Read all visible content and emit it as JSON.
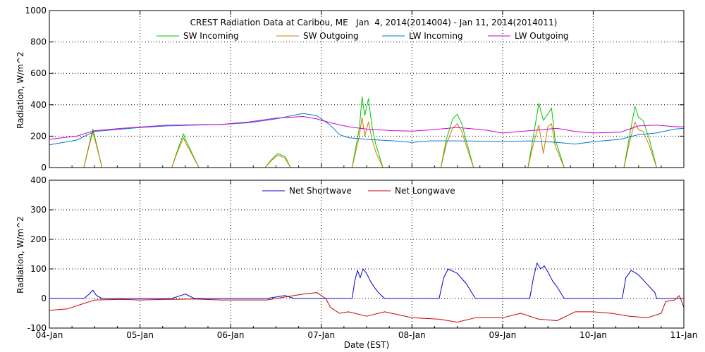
{
  "chart_data": [
    {
      "type": "line",
      "title": "CREST Radiation Data at Caribou, ME   Jan  4, 2014(2014004) - Jan 11, 2014(2014011)",
      "xlabel": "",
      "ylabel": "Radiation, W/m^2",
      "ylim": [
        0,
        1000
      ],
      "yticks": [
        "0",
        "200",
        "400",
        "600",
        "800",
        "1000"
      ],
      "xlim": [
        0,
        7
      ],
      "grid": true,
      "legend_position": "top",
      "series": [
        {
          "name": "SW Incoming",
          "color": "#00c800",
          "x": [
            0,
            0.38,
            0.44,
            0.48,
            0.52,
            0.58,
            1,
            1.35,
            1.42,
            1.48,
            1.5,
            1.55,
            1.65,
            2,
            2.38,
            2.45,
            2.52,
            2.6,
            2.66,
            3,
            3.34,
            3.42,
            3.45,
            3.48,
            3.52,
            3.56,
            3.6,
            3.68,
            4,
            4.32,
            4.38,
            4.45,
            4.5,
            4.55,
            4.6,
            4.68,
            5,
            5.28,
            5.34,
            5.4,
            5.45,
            5.5,
            5.54,
            5.58,
            5.68,
            6,
            6.34,
            6.4,
            6.46,
            6.5,
            6.55,
            6.62,
            6.7,
            7
          ],
          "y": [
            0,
            0,
            150,
            245,
            150,
            0,
            0,
            0,
            120,
            215,
            180,
            120,
            0,
            0,
            0,
            50,
            90,
            70,
            0,
            0,
            0,
            250,
            450,
            330,
            440,
            260,
            150,
            0,
            0,
            0,
            180,
            310,
            340,
            280,
            170,
            0,
            0,
            0,
            200,
            410,
            300,
            340,
            380,
            180,
            0,
            0,
            0,
            200,
            390,
            320,
            300,
            180,
            0,
            0
          ]
        },
        {
          "name": "SW Outgoing",
          "color": "#d07a00",
          "x": [
            0,
            0.38,
            0.44,
            0.48,
            0.52,
            0.58,
            1,
            1.35,
            1.42,
            1.48,
            1.5,
            1.55,
            1.65,
            2,
            2.38,
            2.45,
            2.52,
            2.6,
            2.66,
            3,
            3.34,
            3.42,
            3.45,
            3.48,
            3.52,
            3.56,
            3.6,
            3.68,
            4,
            4.32,
            4.38,
            4.45,
            4.5,
            4.55,
            4.6,
            4.68,
            5,
            5.28,
            5.34,
            5.4,
            5.45,
            5.5,
            5.54,
            5.58,
            5.68,
            6,
            6.34,
            6.4,
            6.46,
            6.5,
            6.55,
            6.62,
            6.7,
            7
          ],
          "y": [
            0,
            0,
            140,
            225,
            140,
            0,
            0,
            0,
            110,
            190,
            160,
            110,
            0,
            0,
            0,
            45,
            80,
            60,
            0,
            0,
            0,
            200,
            320,
            200,
            290,
            180,
            100,
            0,
            0,
            0,
            150,
            250,
            280,
            230,
            140,
            0,
            0,
            0,
            150,
            270,
            90,
            260,
            280,
            140,
            0,
            0,
            0,
            160,
            290,
            240,
            230,
            140,
            0,
            0
          ]
        },
        {
          "name": "LW Incoming",
          "color": "#0078d0",
          "x": [
            0,
            0.3,
            0.5,
            0.8,
            1,
            1.3,
            1.6,
            1.9,
            2.2,
            2.5,
            2.8,
            2.95,
            3.1,
            3.2,
            3.3,
            3.5,
            3.8,
            4,
            4.2,
            4.5,
            4.8,
            5,
            5.3,
            5.6,
            5.8,
            6,
            6.3,
            6.5,
            6.7,
            6.9,
            7
          ],
          "y": [
            145,
            175,
            230,
            245,
            255,
            265,
            270,
            275,
            285,
            310,
            345,
            330,
            270,
            210,
            190,
            180,
            170,
            160,
            170,
            170,
            168,
            165,
            170,
            160,
            150,
            165,
            180,
            210,
            220,
            245,
            250
          ]
        },
        {
          "name": "LW Outgoing",
          "color": "#d000d0",
          "x": [
            0,
            0.3,
            0.5,
            0.8,
            1,
            1.3,
            1.6,
            1.9,
            2.2,
            2.5,
            2.8,
            2.95,
            3.1,
            3.3,
            3.5,
            3.8,
            4,
            4.2,
            4.5,
            4.8,
            5,
            5.3,
            5.6,
            5.8,
            6,
            6.3,
            6.5,
            6.7,
            6.9,
            7
          ],
          "y": [
            180,
            200,
            235,
            250,
            258,
            270,
            272,
            275,
            290,
            315,
            325,
            310,
            285,
            260,
            245,
            235,
            232,
            240,
            255,
            240,
            220,
            235,
            250,
            230,
            220,
            225,
            265,
            270,
            260,
            260
          ]
        }
      ]
    },
    {
      "type": "line",
      "title": "",
      "xlabel": "Date (EST)",
      "ylabel": "Radiation, W/m^2",
      "ylim": [
        -100,
        400
      ],
      "yticks": [
        "-100",
        "0",
        "100",
        "200",
        "300",
        "400"
      ],
      "xlim": [
        0,
        7
      ],
      "xticks": [
        "04-Jan",
        "05-Jan",
        "06-Jan",
        "07-Jan",
        "08-Jan",
        "09-Jan",
        "10-Jan",
        "11-Jan"
      ],
      "grid": true,
      "legend_position": "top",
      "series": [
        {
          "name": "Net Shortwave",
          "color": "#0000c8",
          "x": [
            0,
            0.38,
            0.44,
            0.48,
            0.52,
            0.58,
            1,
            1.35,
            1.45,
            1.5,
            1.6,
            2,
            2.4,
            2.5,
            2.6,
            2.7,
            3,
            3.34,
            3.37,
            3.4,
            3.43,
            3.46,
            3.5,
            3.54,
            3.58,
            3.63,
            3.7,
            4,
            4.3,
            4.35,
            4.4,
            4.5,
            4.6,
            4.7,
            5,
            5.3,
            5.34,
            5.38,
            5.42,
            5.46,
            5.5,
            5.55,
            5.6,
            5.68,
            6,
            6.32,
            6.36,
            6.42,
            6.5,
            6.56,
            6.62,
            6.68,
            6.7,
            7
          ],
          "y": [
            0,
            0,
            15,
            28,
            10,
            0,
            0,
            0,
            10,
            15,
            0,
            0,
            0,
            5,
            10,
            0,
            0,
            0,
            60,
            95,
            70,
            100,
            85,
            60,
            40,
            20,
            0,
            0,
            0,
            70,
            100,
            85,
            50,
            0,
            0,
            0,
            70,
            120,
            100,
            110,
            90,
            60,
            40,
            0,
            0,
            0,
            70,
            95,
            80,
            60,
            40,
            20,
            0,
            0
          ]
        },
        {
          "name": "Net Longwave",
          "color": "#c80000",
          "x": [
            0,
            0.2,
            0.35,
            0.5,
            0.8,
            1,
            1.3,
            1.6,
            1.9,
            2.2,
            2.4,
            2.6,
            2.8,
            2.95,
            3.05,
            3.1,
            3.2,
            3.3,
            3.5,
            3.7,
            4,
            4.3,
            4.5,
            4.7,
            5,
            5.2,
            5.4,
            5.6,
            5.8,
            6,
            6.2,
            6.4,
            6.6,
            6.75,
            6.8,
            6.9,
            6.95,
            7
          ],
          "y": [
            -40,
            -35,
            -20,
            -5,
            -3,
            -5,
            -3,
            -2,
            -5,
            -5,
            -5,
            5,
            15,
            20,
            0,
            -30,
            -50,
            -45,
            -60,
            -45,
            -65,
            -70,
            -80,
            -65,
            -65,
            -50,
            -70,
            -75,
            -45,
            -45,
            -50,
            -60,
            -65,
            -50,
            -10,
            -5,
            10,
            -30
          ]
        }
      ]
    }
  ]
}
